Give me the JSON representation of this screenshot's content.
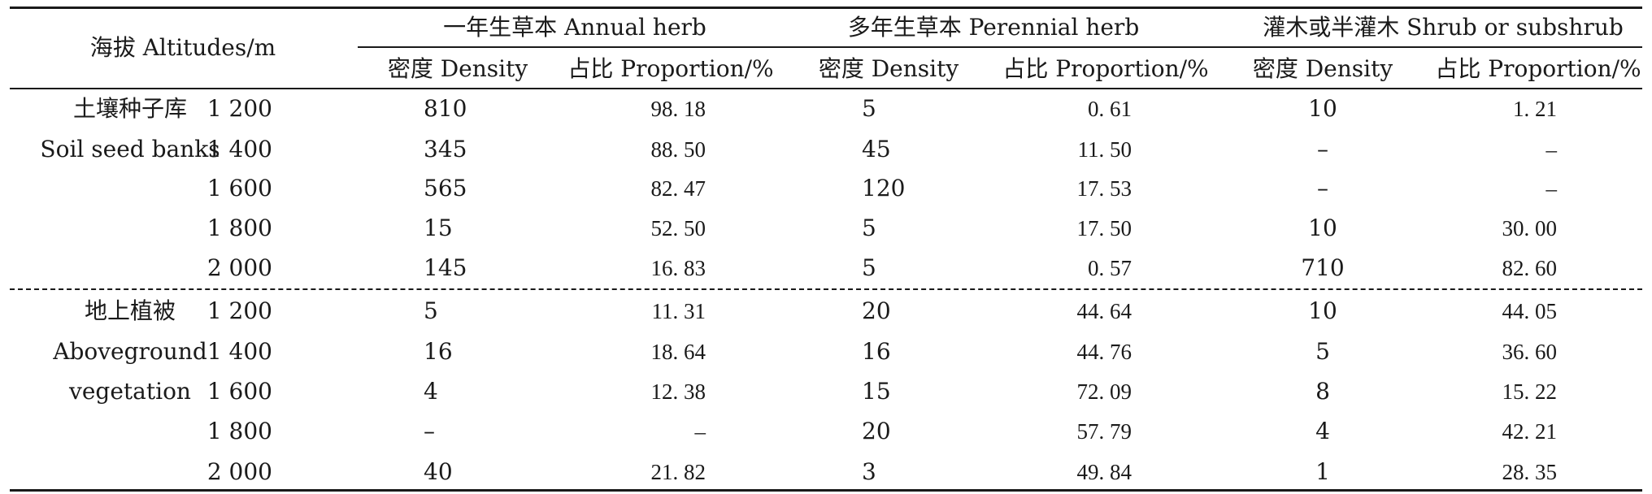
{
  "header": {
    "altitude": "海拔 Altitudes/m",
    "groups": [
      "一年生草本 Annual herb",
      "多年生草本 Perennial herb",
      "灌木或半灌木 Shrub or subshrub"
    ],
    "sub": [
      "密度 Density",
      "占比 Proportion/%",
      "密度 Density",
      "占比 Proportion/%",
      "密度 Density",
      "占比 Proportion/%"
    ]
  },
  "sections": [
    {
      "label_zh": "土壤种子库",
      "label_en": [
        "Soil seed banks"
      ],
      "rows": [
        {
          "alt": "1 200",
          "v": [
            "810",
            "98. 18",
            "5",
            "0. 61",
            "10",
            "1. 21"
          ]
        },
        {
          "alt": "1 400",
          "v": [
            "345",
            "88. 50",
            "45",
            "11. 50",
            "–",
            "–"
          ]
        },
        {
          "alt": "1 600",
          "v": [
            "565",
            "82. 47",
            "120",
            "17. 53",
            "–",
            "–"
          ]
        },
        {
          "alt": "1 800",
          "v": [
            "15",
            "52. 50",
            "5",
            "17. 50",
            "10",
            "30. 00"
          ]
        },
        {
          "alt": "2 000",
          "v": [
            "145",
            "16. 83",
            "5",
            "0. 57",
            "710",
            "82. 60"
          ]
        }
      ]
    },
    {
      "label_zh": "地上植被",
      "label_en": [
        "Aboveground",
        "vegetation"
      ],
      "rows": [
        {
          "alt": "1 200",
          "v": [
            "5",
            "11. 31",
            "20",
            "44. 64",
            "10",
            "44. 05"
          ]
        },
        {
          "alt": "1 400",
          "v": [
            "16",
            "18. 64",
            "16",
            "44. 76",
            "5",
            "36. 60"
          ]
        },
        {
          "alt": "1 600",
          "v": [
            "4",
            "12. 38",
            "15",
            "72. 09",
            "8",
            "15. 22"
          ]
        },
        {
          "alt": "1 800",
          "v": [
            "–",
            "–",
            "20",
            "57. 79",
            "4",
            "42. 21"
          ]
        },
        {
          "alt": "2 000",
          "v": [
            "40",
            "21. 82",
            "3",
            "49. 84",
            "1",
            "28. 35"
          ]
        }
      ]
    }
  ]
}
